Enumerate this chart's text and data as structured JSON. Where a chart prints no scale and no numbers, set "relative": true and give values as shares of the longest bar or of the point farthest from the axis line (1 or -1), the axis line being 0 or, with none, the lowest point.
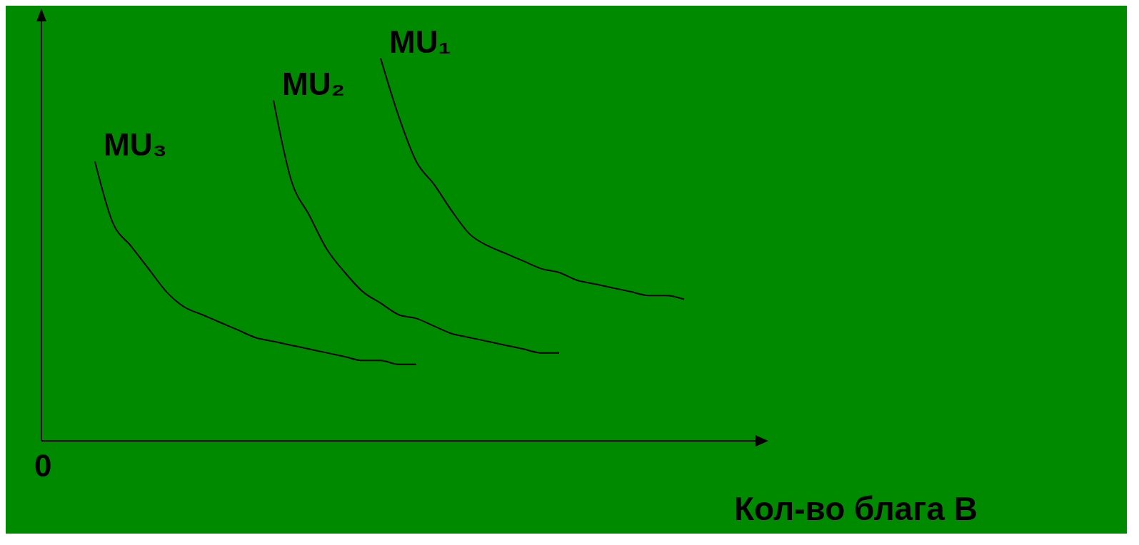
{
  "chart_data": {
    "type": "line",
    "relative": true,
    "xlabel": "Кол-во блага B",
    "annotations": [
      "0"
    ],
    "marker": "none",
    "line_style": "solid",
    "legend": false,
    "categories": [
      null,
      null,
      null,
      null,
      null,
      null,
      null,
      null,
      null,
      null,
      null,
      null,
      null,
      null,
      null,
      null,
      null,
      null,
      null,
      null,
      null,
      null,
      null,
      null,
      null,
      null,
      null,
      null,
      null,
      null,
      null,
      null,
      null,
      null,
      null,
      null,
      null,
      null,
      null,
      null,
      null
    ],
    "series": [
      {
        "name": "MU₁",
        "color": "#000000",
        "values": [
          null,
          null,
          null,
          null,
          null,
          null,
          null,
          null,
          null,
          null,
          null,
          null,
          null,
          null,
          null,
          null,
          null,
          null,
          null,
          1.0,
          0.85,
          0.73,
          0.67,
          0.6,
          0.54,
          0.51,
          0.49,
          0.47,
          0.45,
          0.44,
          0.42,
          0.41,
          0.4,
          0.39,
          0.38,
          0.38,
          0.37,
          null,
          null,
          null,
          null
        ]
      },
      {
        "name": "MU₂",
        "color": "#000000",
        "values": [
          null,
          null,
          null,
          null,
          null,
          null,
          null,
          null,
          null,
          null,
          null,
          null,
          null,
          0.89,
          0.68,
          0.59,
          0.5,
          0.44,
          0.39,
          0.36,
          0.33,
          0.32,
          0.3,
          0.28,
          0.27,
          0.26,
          0.25,
          0.24,
          0.23,
          0.23,
          null,
          null,
          null,
          null,
          null,
          null,
          null,
          null,
          null,
          null,
          null
        ]
      },
      {
        "name": "MU₃",
        "color": "#000000",
        "values": [
          null,
          null,
          null,
          0.73,
          0.57,
          0.51,
          0.45,
          0.39,
          0.35,
          0.33,
          0.31,
          0.29,
          0.27,
          0.26,
          0.25,
          0.24,
          0.23,
          0.22,
          0.21,
          0.21,
          0.2,
          0.2,
          null,
          null,
          null,
          null,
          null,
          null,
          null,
          null,
          null,
          null,
          null,
          null,
          null,
          null,
          null,
          null,
          null,
          null,
          null
        ]
      }
    ]
  }
}
